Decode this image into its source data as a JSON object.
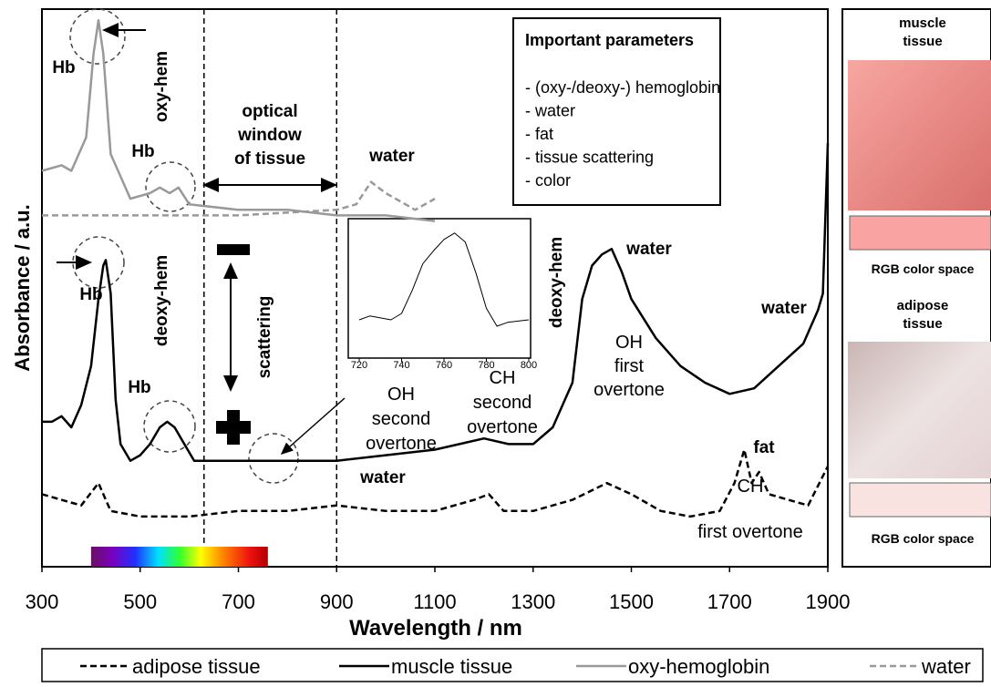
{
  "chart_data": [
    {
      "type": "line",
      "xlabel": "Wavelength / nm",
      "ylabel": "Absorbance / a.u.",
      "xlim": [
        300,
        1900
      ],
      "xticks": [
        300,
        500,
        700,
        900,
        1100,
        1300,
        1500,
        1700,
        1900
      ],
      "ylim": [
        0,
        1
      ],
      "optical_window": [
        630,
        900
      ],
      "spectrum_range": [
        400,
        760
      ],
      "series": [
        {
          "name": "adipose tissue",
          "color": "#000000",
          "dash": true,
          "x": [
            300,
            340,
            380,
            415,
            440,
            500,
            600,
            700,
            800,
            900,
            1000,
            1100,
            1180,
            1210,
            1240,
            1300,
            1380,
            1450,
            1500,
            1560,
            1620,
            1680,
            1710,
            1730,
            1745,
            1760,
            1780,
            1820,
            1860,
            1900
          ],
          "values": [
            0.13,
            0.12,
            0.11,
            0.15,
            0.1,
            0.09,
            0.09,
            0.1,
            0.1,
            0.11,
            0.1,
            0.1,
            0.12,
            0.13,
            0.1,
            0.1,
            0.12,
            0.15,
            0.13,
            0.1,
            0.09,
            0.1,
            0.15,
            0.21,
            0.15,
            0.17,
            0.13,
            0.12,
            0.11,
            0.18
          ]
        },
        {
          "name": "muscle tissue",
          "color": "#000000",
          "dash": false,
          "x": [
            300,
            320,
            340,
            360,
            380,
            400,
            415,
            425,
            430,
            440,
            450,
            460,
            480,
            500,
            520,
            540,
            555,
            570,
            590,
            610,
            640,
            700,
            800,
            900,
            1000,
            1100,
            1150,
            1200,
            1250,
            1300,
            1340,
            1380,
            1400,
            1420,
            1440,
            1460,
            1480,
            1500,
            1550,
            1600,
            1650,
            1700,
            1750,
            1800,
            1850,
            1880,
            1890,
            1900
          ],
          "values": [
            0.26,
            0.26,
            0.27,
            0.25,
            0.29,
            0.36,
            0.48,
            0.54,
            0.55,
            0.49,
            0.3,
            0.22,
            0.19,
            0.2,
            0.22,
            0.25,
            0.26,
            0.25,
            0.22,
            0.19,
            0.19,
            0.19,
            0.19,
            0.19,
            0.2,
            0.21,
            0.22,
            0.23,
            0.22,
            0.22,
            0.25,
            0.33,
            0.48,
            0.54,
            0.56,
            0.57,
            0.53,
            0.48,
            0.41,
            0.36,
            0.33,
            0.31,
            0.32,
            0.36,
            0.4,
            0.46,
            0.49,
            0.76
          ]
        },
        {
          "name": "oxy-hemoglobin",
          "color": "#999999",
          "dash": false,
          "x": [
            300,
            340,
            360,
            390,
            405,
            415,
            425,
            440,
            480,
            520,
            540,
            560,
            578,
            600,
            700,
            800,
            900,
            1000,
            1100
          ],
          "values": [
            0.71,
            0.72,
            0.71,
            0.77,
            0.92,
            0.98,
            0.92,
            0.74,
            0.66,
            0.67,
            0.68,
            0.67,
            0.68,
            0.65,
            0.64,
            0.64,
            0.63,
            0.63,
            0.62
          ]
        },
        {
          "name": "water",
          "color": "#999999",
          "dash": true,
          "x": [
            300,
            500,
            700,
            900,
            940,
            970,
            1000,
            1040,
            1060,
            1080,
            1100
          ],
          "values": [
            0.63,
            0.63,
            0.63,
            0.64,
            0.65,
            0.69,
            0.67,
            0.65,
            0.64,
            0.65,
            0.66
          ]
        }
      ],
      "annotations": [
        [
          "Hb"
        ],
        [
          "oxy-hem"
        ],
        [
          "Hb"
        ],
        [
          "optical",
          "window",
          "of tissue"
        ],
        [
          "water"
        ],
        [
          "Hb"
        ],
        [
          "deoxy-hem"
        ],
        [
          "Hb"
        ],
        [
          "scattering"
        ],
        [
          "deoxy-hem"
        ],
        [
          "water"
        ],
        [
          "water"
        ],
        [
          "OH",
          "second",
          "overtone"
        ],
        [
          "CH",
          "second",
          "overtone"
        ],
        [
          "OH",
          "first",
          "overtone"
        ],
        [
          "water"
        ],
        [
          "fat"
        ],
        [
          "CH",
          "first overtone"
        ]
      ],
      "info_box": {
        "title": "Important parameters",
        "items": [
          "- (oxy-/deoxy-) hemoglobin",
          "- water",
          "- fat",
          "- tissue scattering",
          "- color"
        ]
      }
    },
    {
      "type": "line",
      "xlim": [
        720,
        800
      ],
      "xticks": [
        720,
        740,
        760,
        780,
        800
      ],
      "ylim": [
        0,
        1
      ],
      "color": "#000000",
      "x": [
        720,
        725,
        735,
        740,
        745,
        750,
        755,
        760,
        765,
        770,
        775,
        780,
        785,
        790,
        800
      ],
      "values": [
        0.25,
        0.28,
        0.25,
        0.3,
        0.48,
        0.69,
        0.79,
        0.88,
        0.93,
        0.86,
        0.62,
        0.34,
        0.2,
        0.23,
        0.25
      ]
    }
  ],
  "side_panel": [
    {
      "title": [
        "muscle",
        "tissue"
      ],
      "swatch": "#f9a3a3",
      "caption": "RGB color space"
    },
    {
      "title": [
        "adipose",
        "tissue"
      ],
      "swatch": "#f8e3e0",
      "caption": "RGB color space"
    }
  ]
}
